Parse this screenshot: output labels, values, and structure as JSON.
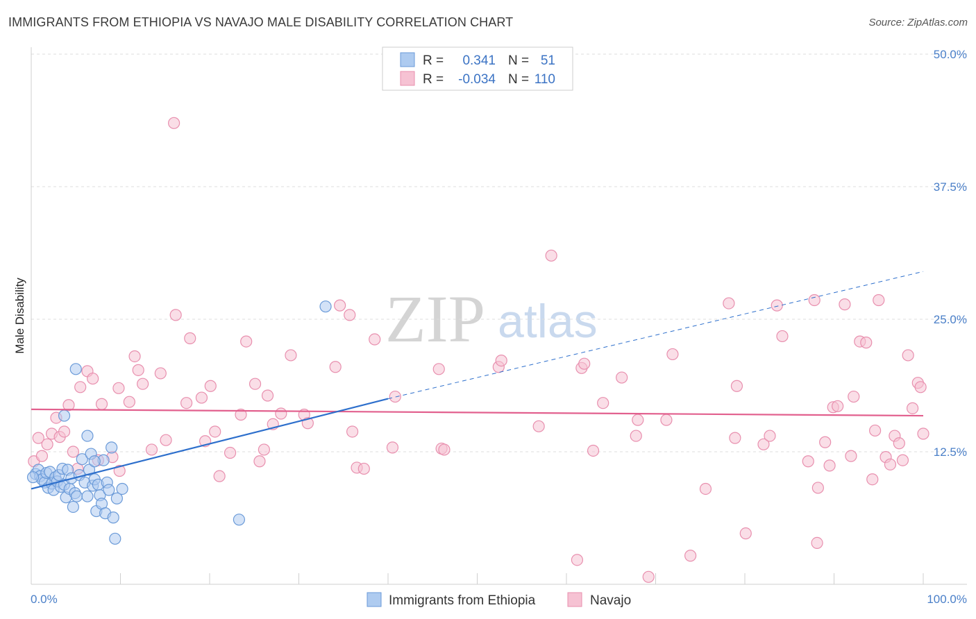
{
  "header": {
    "title": "IMMIGRANTS FROM ETHIOPIA VS NAVAJO MALE DISABILITY CORRELATION CHART",
    "source": "Source: ZipAtlas.com"
  },
  "watermark": {
    "zip": "ZIP",
    "atlas": "atlas"
  },
  "legend": {
    "rows": [
      {
        "r_label": "R =",
        "r_value": "0.341",
        "n_label": "N =",
        "n_value": "51"
      },
      {
        "r_label": "R =",
        "r_value": "-0.034",
        "n_label": "N =",
        "n_value": "110"
      }
    ]
  },
  "bottom_legend": {
    "items": [
      {
        "label": "Immigrants from Ethiopia"
      },
      {
        "label": "Navajo"
      }
    ]
  },
  "colors": {
    "blue_fill": "#aecbf0",
    "blue_stroke": "#6a9ad8",
    "blue_line": "#2d6fcc",
    "pink_fill": "#f6c2d3",
    "pink_stroke": "#e88fae",
    "pink_line": "#e2608e",
    "grid": "#dddddd"
  },
  "chart_data": {
    "type": "scatter",
    "title": "IMMIGRANTS FROM ETHIOPIA VS NAVAJO MALE DISABILITY CORRELATION CHART",
    "xlabel": "",
    "ylabel": "Male Disability",
    "xlim": [
      0,
      100
    ],
    "ylim": [
      0,
      50
    ],
    "x_tick_labels": [
      "0.0%",
      "100.0%"
    ],
    "y_ticks": [
      {
        "value": 12.5,
        "label": "12.5%"
      },
      {
        "value": 25.0,
        "label": "25.0%"
      },
      {
        "value": 37.5,
        "label": "37.5%"
      },
      {
        "value": 50.0,
        "label": "50.0%"
      }
    ],
    "series": [
      {
        "name": "Immigrants from Ethiopia",
        "color": "blue",
        "r": 0.341,
        "n": 51,
        "trend": {
          "x0": 0,
          "y0": 9.0,
          "x1": 40,
          "y1": 17.5,
          "dashed_to_x": 100,
          "dashed_to_y": 29.5
        },
        "points": [
          [
            0.5,
            10.4
          ],
          [
            0.8,
            10.8
          ],
          [
            1.0,
            10.2
          ],
          [
            1.2,
            9.9
          ],
          [
            1.5,
            9.6
          ],
          [
            1.7,
            10.5
          ],
          [
            1.9,
            9.1
          ],
          [
            2.1,
            10.6
          ],
          [
            2.3,
            9.5
          ],
          [
            2.5,
            8.9
          ],
          [
            2.7,
            10.1
          ],
          [
            2.9,
            9.7
          ],
          [
            3.1,
            10.3
          ],
          [
            3.3,
            9.2
          ],
          [
            3.5,
            10.9
          ],
          [
            3.7,
            9.4
          ],
          [
            3.9,
            8.2
          ],
          [
            4.1,
            10.8
          ],
          [
            4.3,
            9.0
          ],
          [
            4.5,
            10.0
          ],
          [
            4.7,
            7.3
          ],
          [
            4.9,
            8.6
          ],
          [
            5.1,
            8.3
          ],
          [
            5.4,
            10.3
          ],
          [
            5.7,
            11.8
          ],
          [
            6.0,
            9.6
          ],
          [
            6.3,
            8.3
          ],
          [
            6.5,
            10.8
          ],
          [
            6.7,
            12.3
          ],
          [
            6.9,
            9.3
          ],
          [
            7.1,
            9.9
          ],
          [
            7.3,
            6.9
          ],
          [
            7.5,
            9.4
          ],
          [
            7.7,
            8.4
          ],
          [
            7.9,
            7.6
          ],
          [
            8.1,
            11.7
          ],
          [
            8.3,
            6.7
          ],
          [
            8.5,
            9.6
          ],
          [
            8.7,
            8.9
          ],
          [
            9.0,
            12.9
          ],
          [
            9.2,
            6.3
          ],
          [
            9.4,
            4.3
          ],
          [
            9.6,
            8.1
          ],
          [
            10.2,
            9.0
          ],
          [
            3.7,
            15.9
          ],
          [
            5.0,
            20.3
          ],
          [
            6.3,
            14.0
          ],
          [
            7.1,
            11.6
          ],
          [
            23.3,
            6.1
          ],
          [
            33.0,
            26.2
          ],
          [
            0.2,
            10.1
          ]
        ]
      },
      {
        "name": "Navajo",
        "color": "pink",
        "r": -0.034,
        "n": 110,
        "trend": {
          "x0": 0,
          "y0": 16.5,
          "x1": 100,
          "y1": 15.9
        },
        "points": [
          [
            0.3,
            11.6
          ],
          [
            0.8,
            13.8
          ],
          [
            1.2,
            12.1
          ],
          [
            1.8,
            13.2
          ],
          [
            2.3,
            14.2
          ],
          [
            2.8,
            15.7
          ],
          [
            3.2,
            13.9
          ],
          [
            3.7,
            14.4
          ],
          [
            4.2,
            16.9
          ],
          [
            4.7,
            12.5
          ],
          [
            5.2,
            10.9
          ],
          [
            5.5,
            18.6
          ],
          [
            6.3,
            20.1
          ],
          [
            6.9,
            19.4
          ],
          [
            7.5,
            11.7
          ],
          [
            7.9,
            17.0
          ],
          [
            9.1,
            12.0
          ],
          [
            9.9,
            10.7
          ],
          [
            9.8,
            18.5
          ],
          [
            11.0,
            17.2
          ],
          [
            11.6,
            21.5
          ],
          [
            12.0,
            20.2
          ],
          [
            12.5,
            18.9
          ],
          [
            13.5,
            12.7
          ],
          [
            14.5,
            19.9
          ],
          [
            15.1,
            13.6
          ],
          [
            17.4,
            17.1
          ],
          [
            16.0,
            43.5
          ],
          [
            16.2,
            25.4
          ],
          [
            17.8,
            23.2
          ],
          [
            19.1,
            17.6
          ],
          [
            19.5,
            13.5
          ],
          [
            20.1,
            18.7
          ],
          [
            20.6,
            14.4
          ],
          [
            21.1,
            10.2
          ],
          [
            22.3,
            12.4
          ],
          [
            23.5,
            16.0
          ],
          [
            24.1,
            22.9
          ],
          [
            25.1,
            18.9
          ],
          [
            25.6,
            11.6
          ],
          [
            26.1,
            12.7
          ],
          [
            26.5,
            17.8
          ],
          [
            27.1,
            15.1
          ],
          [
            28.0,
            16.1
          ],
          [
            29.1,
            21.6
          ],
          [
            30.6,
            16.0
          ],
          [
            31.0,
            15.2
          ],
          [
            34.1,
            20.5
          ],
          [
            34.6,
            26.3
          ],
          [
            35.7,
            25.4
          ],
          [
            36.0,
            14.4
          ],
          [
            36.5,
            11.0
          ],
          [
            37.3,
            10.9
          ],
          [
            38.5,
            23.1
          ],
          [
            40.5,
            12.9
          ],
          [
            40.8,
            17.7
          ],
          [
            45.7,
            20.3
          ],
          [
            46.0,
            12.8
          ],
          [
            46.3,
            12.7
          ],
          [
            52.4,
            20.5
          ],
          [
            52.7,
            21.1
          ],
          [
            56.9,
            14.9
          ],
          [
            58.3,
            31.0
          ],
          [
            61.2,
            2.3
          ],
          [
            61.7,
            20.4
          ],
          [
            62.0,
            20.8
          ],
          [
            63.0,
            12.6
          ],
          [
            64.1,
            17.1
          ],
          [
            66.2,
            19.5
          ],
          [
            67.8,
            14.0
          ],
          [
            68.0,
            15.5
          ],
          [
            69.2,
            0.7
          ],
          [
            71.2,
            15.5
          ],
          [
            71.9,
            21.7
          ],
          [
            73.9,
            2.7
          ],
          [
            75.6,
            9.0
          ],
          [
            78.2,
            26.5
          ],
          [
            78.9,
            13.8
          ],
          [
            79.1,
            18.7
          ],
          [
            80.1,
            4.8
          ],
          [
            82.1,
            13.2
          ],
          [
            82.8,
            14.0
          ],
          [
            83.6,
            26.3
          ],
          [
            84.2,
            23.4
          ],
          [
            87.1,
            11.6
          ],
          [
            88.1,
            3.9
          ],
          [
            87.8,
            26.8
          ],
          [
            88.2,
            9.1
          ],
          [
            89.0,
            13.4
          ],
          [
            89.5,
            11.2
          ],
          [
            89.9,
            16.7
          ],
          [
            90.4,
            16.8
          ],
          [
            91.2,
            26.4
          ],
          [
            91.9,
            12.1
          ],
          [
            92.2,
            17.7
          ],
          [
            92.9,
            22.9
          ],
          [
            93.6,
            22.8
          ],
          [
            94.3,
            9.9
          ],
          [
            94.6,
            14.5
          ],
          [
            95.0,
            26.8
          ],
          [
            95.8,
            12.0
          ],
          [
            96.3,
            11.3
          ],
          [
            96.8,
            14.0
          ],
          [
            97.3,
            13.3
          ],
          [
            97.7,
            11.7
          ],
          [
            98.3,
            21.6
          ],
          [
            98.8,
            16.6
          ],
          [
            99.4,
            19.0
          ],
          [
            99.7,
            18.6
          ],
          [
            100.0,
            14.2
          ]
        ]
      }
    ]
  }
}
